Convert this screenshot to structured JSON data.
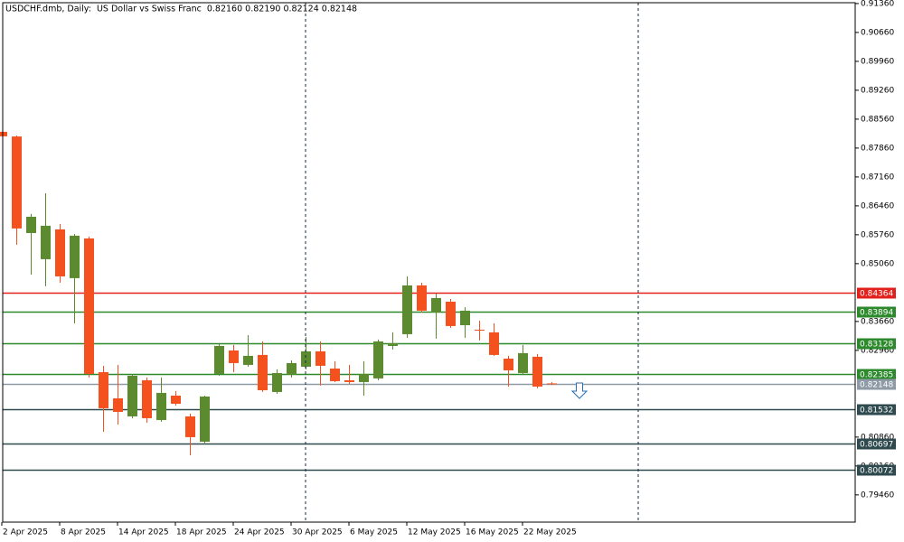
{
  "chart_data": {
    "type": "candlestick",
    "title": "USDCHF.dmb, Daily:  US Dollar vs Swiss Franc  0.82160 0.82190 0.82124 0.82148",
    "categories": [
      "2 Apr 2025",
      null,
      null,
      null,
      "8 Apr 2025",
      null,
      null,
      null,
      "14 Apr 2025",
      null,
      null,
      null,
      "18 Apr 2025",
      null,
      null,
      null,
      "24 Apr 2025",
      null,
      null,
      null,
      "30 Apr 2025",
      null,
      null,
      null,
      "6 May 2025",
      null,
      null,
      null,
      "12 May 2025",
      null,
      null,
      null,
      "16 May 2025",
      null,
      null,
      null,
      "22 May 2025",
      null,
      null
    ],
    "open": [
      0.88253,
      0.8814,
      0.85802,
      0.85168,
      0.8589,
      0.84709,
      0.85671,
      0.82433,
      0.81798,
      0.81361,
      0.82236,
      0.81273,
      0.81864,
      0.81361,
      0.80748,
      0.82389,
      0.82958,
      0.82608,
      0.82849,
      0.81952,
      0.82367,
      0.82564,
      0.82936,
      0.8252,
      0.82236,
      0.82192,
      0.8228,
      0.83067,
      0.83352,
      0.84533,
      0.83877,
      0.84139,
      0.8357,
      0.83461,
      0.83396,
      0.8276,
      0.82411,
      0.82805,
      0.8216
    ],
    "high": [
      0.8826,
      0.8816,
      0.86262,
      0.86765,
      0.86021,
      0.8578,
      0.85715,
      0.82586,
      0.82608,
      0.82389,
      0.82302,
      0.82302,
      0.81974,
      0.81427,
      0.81864,
      0.83111,
      0.8309,
      0.8333,
      0.83177,
      0.82499,
      0.82717,
      0.83286,
      0.83177,
      0.82696,
      0.82608,
      0.82696,
      0.83221,
      0.83396,
      0.84752,
      0.84599,
      0.84337,
      0.84205,
      0.84008,
      0.8368,
      0.83615,
      0.82827,
      0.8309,
      0.82871,
      0.8219
    ],
    "low": [
      0.8814,
      0.85518,
      0.84796,
      0.84512,
      0.84599,
      0.83614,
      0.82302,
      0.80989,
      0.81164,
      0.81317,
      0.81208,
      0.8123,
      0.81623,
      0.8042,
      0.80683,
      0.82345,
      0.82433,
      0.82564,
      0.81952,
      0.81908,
      0.82302,
      0.82499,
      0.82105,
      0.82192,
      0.82148,
      0.81864,
      0.82236,
      0.8298,
      0.83265,
      0.83877,
      0.83243,
      0.83505,
      0.83265,
      0.83199,
      0.82827,
      0.82083,
      0.82367,
      0.8204,
      0.82124
    ],
    "close": [
      0.88144,
      0.85912,
      0.86196,
      0.85978,
      0.84752,
      0.85737,
      0.82389,
      0.81558,
      0.8147,
      0.82345,
      0.81317,
      0.8193,
      0.81667,
      0.80858,
      0.81842,
      0.83067,
      0.82652,
      0.82827,
      0.81995,
      0.82411,
      0.82652,
      0.82936,
      0.82586,
      0.82214,
      0.82192,
      0.82389,
      0.83177,
      0.83133,
      0.84533,
      0.83921,
      0.84227,
      0.83549,
      0.83921,
      0.83439,
      0.82849,
      0.82476,
      0.82892,
      0.82083,
      0.82148
    ],
    "up_color": "#5b8a2f",
    "down_color": "#f4511e",
    "ylim": [
      0.788,
      0.9138
    ],
    "yticks": [
      {
        "value": 0.9136,
        "label": "0.91360"
      },
      {
        "value": 0.9066,
        "label": "0.90660"
      },
      {
        "value": 0.8996,
        "label": "0.89960"
      },
      {
        "value": 0.8926,
        "label": "0.89260"
      },
      {
        "value": 0.8856,
        "label": "0.88560"
      },
      {
        "value": 0.8786,
        "label": "0.87860"
      },
      {
        "value": 0.8716,
        "label": "0.87160"
      },
      {
        "value": 0.8646,
        "label": "0.86460"
      },
      {
        "value": 0.8576,
        "label": "0.85760"
      },
      {
        "value": 0.8506,
        "label": "0.85060"
      },
      {
        "value": 0.8366,
        "label": "0.83660"
      },
      {
        "value": 0.8296,
        "label": "0.82960"
      },
      {
        "value": 0.8086,
        "label": "0.80860"
      },
      {
        "value": 0.8016,
        "label": "0.80160"
      },
      {
        "value": 0.7946,
        "label": "0.79460"
      }
    ],
    "grid": false,
    "levels": [
      {
        "value": 0.84364,
        "color": "#e3211c"
      },
      {
        "value": 0.83894,
        "color": "#2c8a2c"
      },
      {
        "value": 0.83128,
        "color": "#2c8a2c"
      },
      {
        "value": 0.82385,
        "color": "#2c8a2c"
      },
      {
        "value": 0.82148,
        "color": "#8e9ba6"
      },
      {
        "value": 0.81532,
        "color": "#2f4a4f"
      },
      {
        "value": 0.80697,
        "color": "#2f4a4f"
      },
      {
        "value": 0.80072,
        "color": "#2f4a4f"
      }
    ]
  }
}
